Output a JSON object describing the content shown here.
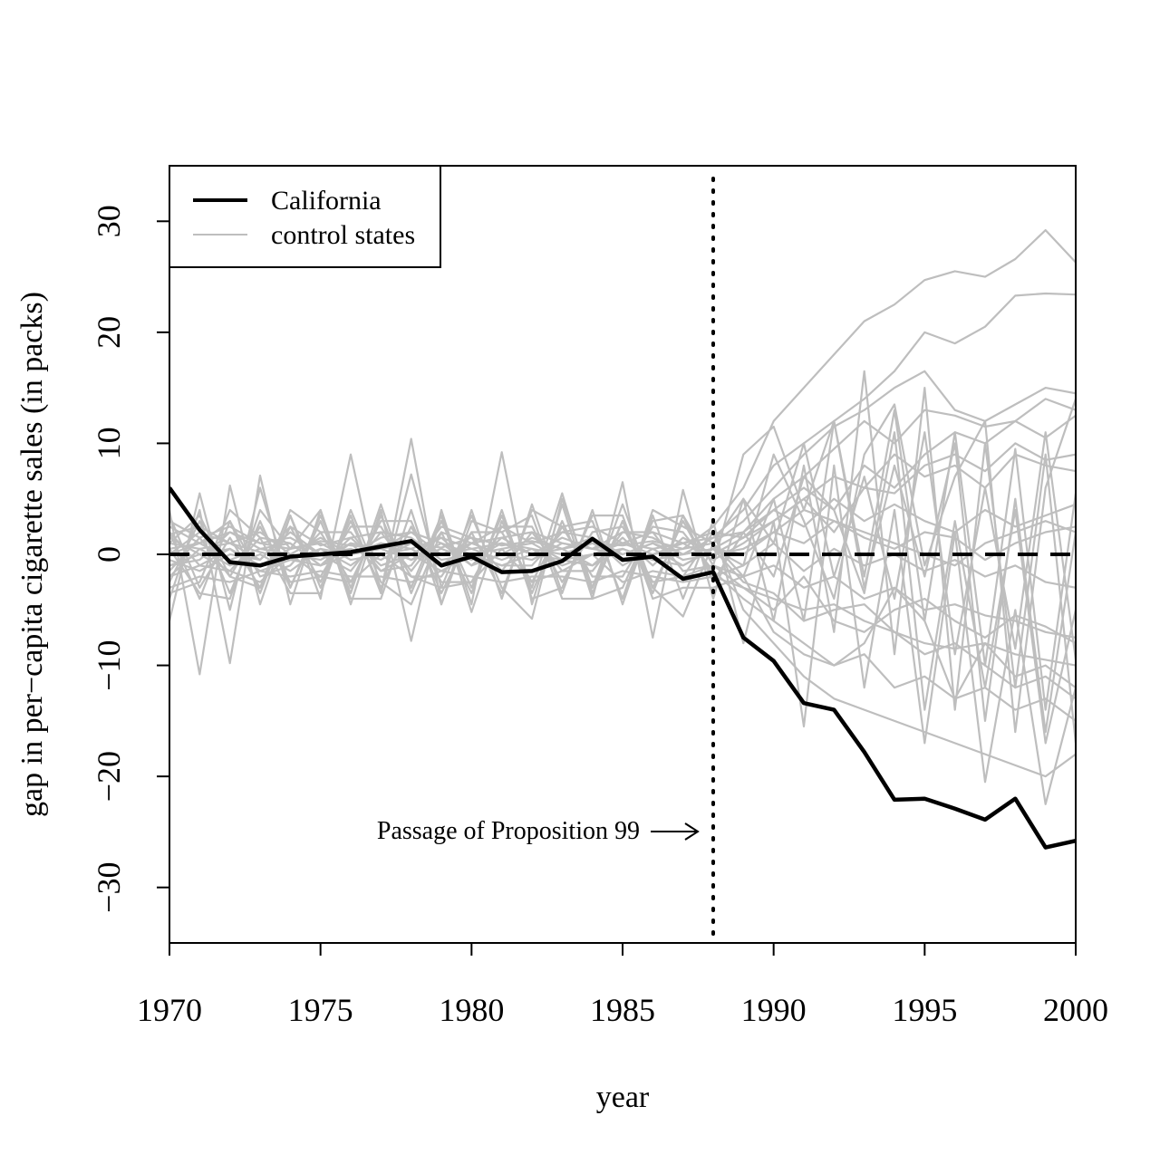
{
  "chart_data": {
    "type": "line",
    "xlabel": "year",
    "ylabel": "gap in per−capita cigarette sales (in packs)",
    "xlim": [
      1970,
      2000
    ],
    "ylim": [
      -35,
      35
    ],
    "xticks": [
      1970,
      1975,
      1980,
      1985,
      1990,
      1995,
      2000
    ],
    "yticks": [
      -30,
      -20,
      -10,
      0,
      10,
      20,
      30
    ],
    "xtick_labels": [
      "1970",
      "1975",
      "1980",
      "1985",
      "1990",
      "1995",
      "2000"
    ],
    "ytick_labels": [
      "−30",
      "−20",
      "−10",
      "0",
      "10",
      "20",
      "30"
    ],
    "legend": {
      "placement": "top-left",
      "entries": [
        {
          "label": "California",
          "color": "#000000"
        },
        {
          "label": "control states",
          "color": "#bebebe"
        }
      ]
    },
    "reference_line": {
      "y": 0,
      "style": "dashed"
    },
    "event_line": {
      "x": 1988,
      "style": "dotted"
    },
    "annotation": {
      "text": "Passage of Proposition 99",
      "x": 1988,
      "y": -25
    },
    "x": [
      1970,
      1971,
      1972,
      1973,
      1974,
      1975,
      1976,
      1977,
      1978,
      1979,
      1980,
      1981,
      1982,
      1983,
      1984,
      1985,
      1986,
      1987,
      1988,
      1989,
      1990,
      1991,
      1992,
      1993,
      1994,
      1995,
      1996,
      1997,
      1998,
      1999,
      2000
    ],
    "series": [
      {
        "name": "California",
        "color": "#000000",
        "emphasis": true,
        "values": [
          6.0,
          2.2,
          -0.7,
          -1.0,
          -0.2,
          0.0,
          0.2,
          0.7,
          1.2,
          -1.0,
          -0.2,
          -1.6,
          -1.5,
          -0.6,
          1.4,
          -0.5,
          -0.2,
          -2.2,
          -1.6,
          -7.5,
          -9.6,
          -13.4,
          -14.0,
          -17.8,
          -22.1,
          -22.0,
          -22.9,
          -23.9,
          -22.0,
          -26.4,
          -25.8
        ]
      },
      {
        "color": "#bebebe",
        "values": [
          3.0,
          1.5,
          2.5,
          1.0,
          0.5,
          1.2,
          0.8,
          0.5,
          1.0,
          0.6,
          1.5,
          0.8,
          1.2,
          0.5,
          1.0,
          0.8,
          1.2,
          0.5,
          2.5,
          6.0,
          12.0,
          15.0,
          18.0,
          21.0,
          22.5,
          24.7,
          25.5,
          25.0,
          26.6,
          29.2,
          26.3
        ]
      },
      {
        "color": "#bebebe",
        "values": [
          1.0,
          0.5,
          1.0,
          0.2,
          -0.5,
          0.5,
          0.0,
          1.0,
          0.5,
          1.5,
          0.5,
          1.0,
          0.0,
          1.5,
          0.5,
          1.0,
          0.5,
          1.0,
          1.5,
          4.0,
          8.0,
          10.0,
          12.0,
          14.0,
          16.5,
          20.0,
          19.0,
          20.5,
          23.3,
          23.5,
          23.4
        ]
      },
      {
        "color": "#bebebe",
        "values": [
          -1.0,
          -0.5,
          2.0,
          1.0,
          1.5,
          0.0,
          0.5,
          -0.5,
          1.0,
          0.0,
          0.5,
          -0.5,
          0.5,
          0.0,
          1.0,
          -0.5,
          0.0,
          0.5,
          1.0,
          3.0,
          6.0,
          9.0,
          11.5,
          13.0,
          15.0,
          16.5,
          13.0,
          12.0,
          13.5,
          15.0,
          14.5
        ]
      },
      {
        "color": "#bebebe",
        "values": [
          0.5,
          1.0,
          -0.5,
          0.5,
          0.0,
          -0.5,
          1.0,
          0.5,
          -0.5,
          1.0,
          0.0,
          0.5,
          1.0,
          -0.5,
          0.0,
          0.5,
          -0.5,
          0.0,
          0.5,
          2.0,
          5.0,
          7.0,
          9.5,
          12.0,
          10.0,
          13.0,
          12.5,
          11.5,
          12.0,
          10.5,
          12.5
        ]
      },
      {
        "color": "#bebebe",
        "values": [
          2.0,
          -1.0,
          0.5,
          -1.0,
          0.5,
          1.0,
          -0.5,
          0.0,
          0.5,
          -1.0,
          1.0,
          0.0,
          -0.5,
          1.0,
          0.5,
          0.0,
          1.0,
          -0.5,
          0.0,
          1.5,
          4.0,
          6.0,
          4.0,
          8.0,
          6.0,
          9.0,
          11.0,
          10.0,
          12.0,
          14.0,
          13.0
        ]
      },
      {
        "color": "#bebebe",
        "values": [
          -2.0,
          0.5,
          -1.0,
          0.0,
          -1.5,
          0.5,
          -1.0,
          1.0,
          -0.5,
          0.5,
          -0.5,
          1.0,
          0.5,
          -1.0,
          0.0,
          1.0,
          0.0,
          1.0,
          -0.5,
          1.0,
          3.0,
          5.0,
          2.0,
          6.0,
          9.0,
          7.0,
          8.0,
          6.0,
          9.0,
          8.0,
          7.5
        ]
      },
      {
        "color": "#bebebe",
        "values": [
          0.0,
          2.0,
          1.0,
          2.0,
          0.0,
          1.5,
          0.0,
          0.5,
          2.0,
          0.0,
          1.0,
          1.5,
          0.0,
          0.5,
          1.5,
          0.0,
          1.0,
          0.0,
          1.5,
          2.0,
          4.0,
          2.5,
          5.0,
          3.0,
          4.5,
          3.0,
          2.0,
          4.0,
          2.5,
          3.5,
          4.5
        ]
      },
      {
        "color": "#bebebe",
        "values": [
          1.5,
          0.0,
          -1.5,
          1.5,
          1.0,
          -1.0,
          1.5,
          -1.0,
          0.0,
          1.5,
          -1.0,
          0.0,
          1.5,
          0.5,
          -1.0,
          1.5,
          -1.0,
          1.5,
          0.0,
          0.5,
          2.0,
          1.0,
          3.0,
          1.5,
          0.5,
          2.0,
          1.5,
          -0.5,
          1.0,
          2.0,
          2.5
        ]
      },
      {
        "color": "#bebebe",
        "values": [
          -0.5,
          -1.5,
          0.0,
          -0.5,
          2.0,
          0.0,
          -1.5,
          2.0,
          1.5,
          -0.5,
          0.0,
          -1.0,
          -1.0,
          2.0,
          1.5,
          -1.0,
          0.5,
          -1.0,
          0.5,
          -1.0,
          1.0,
          -1.5,
          0.5,
          -1.0,
          0.0,
          -1.5,
          -0.5,
          -2.0,
          -1.0,
          -2.5,
          -3.0
        ]
      },
      {
        "color": "#bebebe",
        "values": [
          2.5,
          1.0,
          3.0,
          -2.0,
          -1.0,
          2.0,
          2.0,
          -1.5,
          -1.0,
          2.5,
          1.5,
          -1.5,
          2.0,
          -1.5,
          -1.5,
          2.0,
          2.0,
          -1.5,
          -1.0,
          -2.0,
          -1.0,
          -3.0,
          -2.0,
          -4.0,
          -3.0,
          -5.0,
          -4.5,
          -5.5,
          -6.0,
          -7.0,
          -7.5
        ]
      },
      {
        "color": "#bebebe",
        "values": [
          -3.0,
          -2.0,
          -2.5,
          -1.5,
          -2.0,
          -1.5,
          -2.0,
          -2.0,
          -2.5,
          -1.5,
          -2.0,
          -2.5,
          -2.0,
          -2.0,
          -2.5,
          -1.5,
          -2.0,
          -2.5,
          -2.0,
          -3.0,
          -4.0,
          -5.0,
          -4.5,
          -6.0,
          -7.0,
          -8.0,
          -8.5,
          -8.0,
          -9.0,
          -9.5,
          -10.0
        ]
      },
      {
        "color": "#bebebe",
        "values": [
          -1.5,
          1.5,
          -2.0,
          2.5,
          -2.5,
          -2.0,
          2.5,
          2.5,
          -2.0,
          -2.0,
          2.0,
          2.0,
          -2.5,
          2.5,
          -2.0,
          -2.0,
          2.5,
          2.0,
          -1.5,
          -4.0,
          -6.0,
          -8.0,
          -10.0,
          -9.0,
          -12.0,
          -11.0,
          -13.0,
          -12.0,
          -14.0,
          -13.0,
          -15.0
        ]
      },
      {
        "color": "#bebebe",
        "values": [
          3.5,
          -3.0,
          1.5,
          -3.0,
          2.5,
          -2.5,
          3.0,
          -3.0,
          2.5,
          -2.5,
          -2.5,
          2.5,
          2.5,
          -2.5,
          2.0,
          2.5,
          -2.5,
          -2.0,
          2.0,
          -5.0,
          -8.0,
          -11.0,
          -13.0,
          -14.0,
          -15.0,
          -16.0,
          -17.0,
          -18.0,
          -19.0,
          -20.0,
          -18.0
        ]
      },
      {
        "color": "#bebebe",
        "values": [
          -6.0,
          5.5,
          -5.0,
          6.0,
          -3.0,
          3.0,
          -3.5,
          4.5,
          -3.5,
          3.0,
          -3.0,
          3.5,
          -3.5,
          3.0,
          -3.0,
          3.0,
          -3.5,
          3.5,
          -1.0,
          9.0,
          11.5,
          4.0,
          12.0,
          -2.0,
          13.0,
          -6.0,
          11.0,
          -10.0,
          9.5,
          -14.0,
          5.5
        ]
      },
      {
        "color": "#bebebe",
        "values": [
          4.0,
          -10.8,
          6.2,
          -4.5,
          3.5,
          -4.0,
          9.0,
          -3.5,
          10.4,
          -4.5,
          4.0,
          -4.0,
          4.5,
          -3.5,
          4.0,
          -4.5,
          3.5,
          -4.0,
          3.0,
          -8.0,
          3.0,
          -15.5,
          8.0,
          -12.0,
          4.0,
          -17.0,
          2.0,
          -20.5,
          -5.0,
          -22.5,
          -12.0
        ]
      },
      {
        "color": "#bebebe",
        "values": [
          -4.0,
          4.0,
          -9.8,
          7.1,
          -4.5,
          4.0,
          -4.5,
          4.0,
          -7.8,
          4.0,
          -4.5,
          9.2,
          -4.5,
          4.5,
          -4.0,
          6.5,
          -7.5,
          5.8,
          -4.0,
          5.0,
          -6.0,
          8.0,
          -7.0,
          16.5,
          -9.0,
          15.0,
          -14.0,
          10.0,
          -12.0,
          9.0,
          -17.0
        ]
      },
      {
        "color": "#bebebe",
        "values": [
          2.0,
          -4.0,
          3.0,
          -3.5,
          3.5,
          -3.0,
          3.5,
          -3.5,
          7.2,
          -3.0,
          3.5,
          -3.0,
          -5.8,
          5.0,
          -3.0,
          4.5,
          -3.0,
          -5.6,
          1.0,
          -2.0,
          5.0,
          -6.0,
          12.0,
          -3.0,
          8.0,
          -2.0,
          10.0,
          -15.0,
          5.0,
          -16.0,
          2.0
        ]
      },
      {
        "color": "#bebebe",
        "values": [
          -2.5,
          3.0,
          -3.5,
          3.0,
          -3.0,
          3.5,
          -3.0,
          3.5,
          -3.0,
          3.5,
          -5.2,
          3.0,
          -3.0,
          5.5,
          -3.5,
          3.0,
          -3.0,
          3.0,
          -2.0,
          -1.0,
          9.0,
          3.0,
          -4.0,
          9.0,
          13.5,
          -1.0,
          7.0,
          12.0,
          -16.0,
          6.0,
          14.0
        ]
      },
      {
        "color": "#bebebe",
        "values": [
          1.0,
          3.5,
          -2.0,
          -3.0,
          4.0,
          2.0,
          -2.5,
          3.0,
          3.0,
          -3.5,
          2.0,
          -3.5,
          4.0,
          2.5,
          3.0,
          -4.0,
          4.0,
          2.5,
          1.0,
          5.0,
          1.0,
          10.0,
          -2.0,
          7.0,
          -4.0,
          11.0,
          -9.0,
          6.0,
          -8.5,
          11.0,
          -9.5
        ]
      },
      {
        "color": "#bebebe",
        "values": [
          -3.5,
          -2.5,
          4.0,
          1.5,
          -3.5,
          -3.5,
          4.0,
          -2.5,
          -4.5,
          2.0,
          -3.5,
          4.0,
          -4.0,
          -3.0,
          3.5,
          3.5,
          -4.0,
          -3.0,
          -3.0,
          -2.0,
          -7.0,
          -9.0,
          -10.0,
          -8.0,
          -3.0,
          -6.0,
          -13.0,
          -8.0,
          -11.0,
          -10.0,
          -12.0
        ]
      },
      {
        "color": "#bebebe",
        "values": [
          0.5,
          -3.5,
          -4.0,
          4.0,
          0.5,
          4.0,
          -4.0,
          -4.0,
          4.0,
          -4.5,
          3.0,
          2.0,
          3.5,
          -4.0,
          -4.0,
          -3.0,
          3.0,
          3.5,
          -2.5,
          2.0,
          -2.0,
          7.0,
          4.0,
          -3.5,
          11.0,
          -14.0,
          3.0,
          -12.0,
          4.0,
          -17.0,
          -5.0
        ]
      },
      {
        "color": "#bebebe",
        "values": [
          -1.0,
          0.0,
          0.5,
          -1.5,
          -0.5,
          -1.0,
          1.0,
          -1.5,
          0.0,
          -1.5,
          0.0,
          -1.0,
          0.0,
          -0.5,
          -1.0,
          0.5,
          -0.5,
          -1.0,
          0.5,
          -2.5,
          -3.5,
          -6.0,
          -5.0,
          -4.5,
          -7.0,
          -9.0,
          -8.0,
          -10.0,
          -12.0,
          -11.0,
          -13.0
        ]
      },
      {
        "color": "#bebebe",
        "values": [
          1.8,
          2.5,
          1.0,
          -0.5,
          2.5,
          0.8,
          1.5,
          2.0,
          -1.5,
          2.0,
          1.0,
          2.5,
          1.0,
          2.0,
          2.5,
          1.0,
          2.0,
          1.0,
          2.0,
          1.5,
          3.0,
          5.0,
          7.0,
          6.0,
          5.5,
          8.0,
          9.0,
          7.5,
          10.0,
          8.5,
          9.0
        ]
      },
      {
        "color": "#bebebe",
        "values": [
          -2.0,
          -1.0,
          -1.5,
          -2.5,
          0.0,
          -2.0,
          -2.5,
          0.0,
          -2.0,
          -3.0,
          -2.5,
          0.5,
          -2.5,
          -1.5,
          0.0,
          -2.5,
          -1.5,
          -2.0,
          -1.0,
          -3.0,
          -5.0,
          -2.0,
          -6.0,
          -7.0,
          -5.0,
          -4.0,
          -6.0,
          -7.5,
          -5.5,
          -6.5,
          -8.0
        ]
      },
      {
        "color": "#bebebe",
        "values": [
          0.0,
          1.0,
          2.0,
          0.5,
          1.0,
          -1.0,
          0.0,
          1.5,
          2.0,
          1.0,
          -1.0,
          1.5,
          2.0,
          1.0,
          0.5,
          2.0,
          1.5,
          0.0,
          0.5,
          0.0,
          2.0,
          4.0,
          3.0,
          2.0,
          1.0,
          0.0,
          -1.0,
          1.0,
          2.0,
          3.0,
          2.0
        ]
      }
    ]
  }
}
